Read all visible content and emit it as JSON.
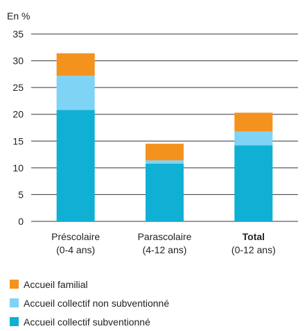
{
  "chart_data": {
    "type": "bar",
    "stacked": true,
    "unit_label": "En %",
    "ylim": [
      0,
      35
    ],
    "yticks": [
      0,
      5,
      10,
      15,
      20,
      25,
      30,
      35
    ],
    "grid": true,
    "categories": [
      {
        "name": "Préscolaire",
        "sub": "(0-4 ans)",
        "bold": false
      },
      {
        "name": "Parascolaire",
        "sub": "(4-12 ans)",
        "bold": false
      },
      {
        "name": "Total",
        "sub": "(0-12 ans)",
        "bold": true
      }
    ],
    "series": [
      {
        "name": "Accueil collectif subventionné",
        "color": "#10b0d4",
        "values": [
          20.8,
          10.8,
          14.2
        ]
      },
      {
        "name": "Accueil collectif non subventionné",
        "color": "#7fd3f4",
        "values": [
          6.4,
          0.6,
          2.6
        ]
      },
      {
        "name": "Accueil familial",
        "color": "#f4921e",
        "values": [
          4.2,
          3.1,
          3.5
        ]
      }
    ],
    "legend_order": [
      2,
      1,
      0
    ],
    "legend_position": "bottom-left"
  }
}
